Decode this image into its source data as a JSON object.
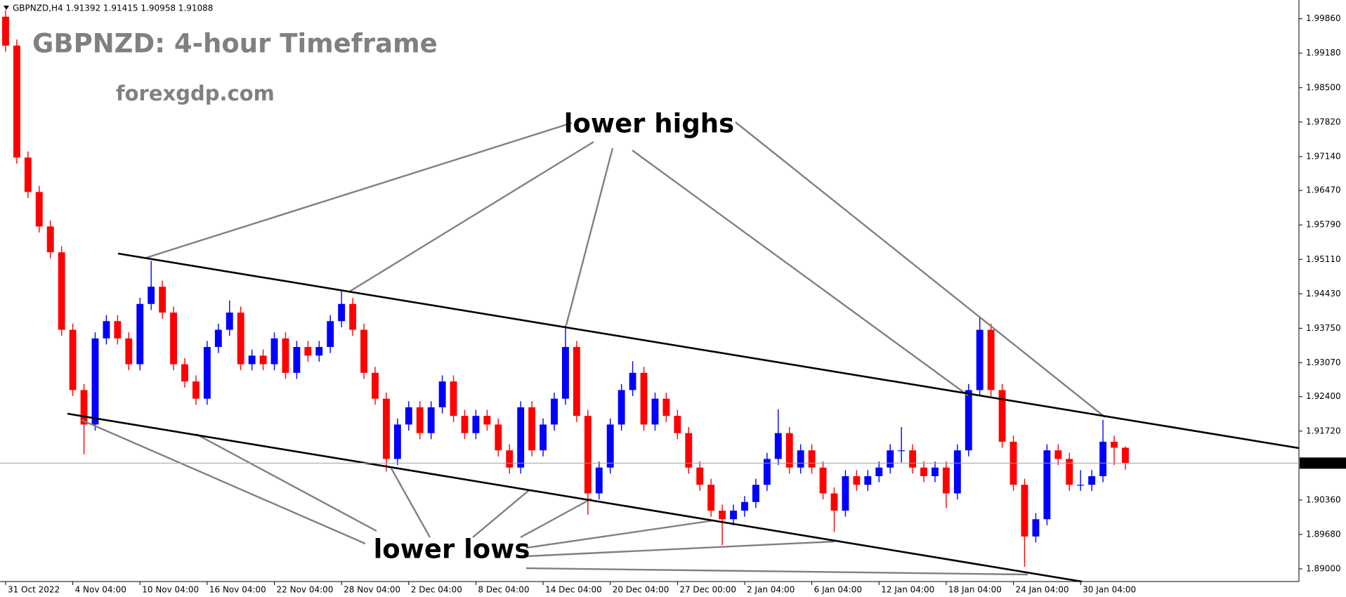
{
  "chart_data": {
    "type": "candlestick",
    "header": "GBPNZD,H4  1.91392 1.91415 1.90958 1.91088",
    "title": "GBPNZD: 4-hour Timeframe",
    "subtitle": "forexgdp.com",
    "annotations": {
      "highs": "lower highs",
      "lows": "lower lows"
    },
    "up_color": "#0000ff",
    "down_color": "#ff0000",
    "last_price": 1.91088,
    "xlim": [
      -0.5,
      115.5
    ],
    "xticks": [
      {
        "value": 0,
        "label": "31 Oct 2022"
      },
      {
        "value": 6,
        "label": "4 Nov 04:00"
      },
      {
        "value": 12,
        "label": "10 Nov 04:00"
      },
      {
        "value": 18,
        "label": "16 Nov 04:00"
      },
      {
        "value": 24,
        "label": "22 Nov 04:00"
      },
      {
        "value": 30,
        "label": "28 Nov 04:00"
      },
      {
        "value": 36,
        "label": "2 Dec 04:00"
      },
      {
        "value": 42,
        "label": "8 Dec 04:00"
      },
      {
        "value": 48,
        "label": "14 Dec 04:00"
      },
      {
        "value": 54,
        "label": "20 Dec 04:00"
      },
      {
        "value": 60,
        "label": "27 Dec 00:00"
      },
      {
        "value": 66,
        "label": "2 Jan 04:00"
      },
      {
        "value": 72,
        "label": "6 Jan 04:00"
      },
      {
        "value": 78,
        "label": "12 Jan 04:00"
      },
      {
        "value": 84,
        "label": "18 Jan 04:00"
      },
      {
        "value": 90,
        "label": "24 Jan 04:00"
      },
      {
        "value": 96,
        "label": "30 Jan 04:00"
      }
    ],
    "ylim": [
      1.8875,
      2.0023
    ],
    "yticks": [
      {
        "value": 1.9986,
        "label": "1.99860"
      },
      {
        "value": 1.9918,
        "label": "1.99180"
      },
      {
        "value": 1.985,
        "label": "1.98500"
      },
      {
        "value": 1.9782,
        "label": "1.97820"
      },
      {
        "value": 1.9714,
        "label": "1.97140"
      },
      {
        "value": 1.9647,
        "label": "1.96470"
      },
      {
        "value": 1.9579,
        "label": "1.95790"
      },
      {
        "value": 1.9511,
        "label": "1.95110"
      },
      {
        "value": 1.9443,
        "label": "1.94430"
      },
      {
        "value": 1.9375,
        "label": "1.93750"
      },
      {
        "value": 1.9307,
        "label": "1.93070"
      },
      {
        "value": 1.924,
        "label": "1.92400"
      },
      {
        "value": 1.9172,
        "label": "1.91720"
      },
      {
        "value": 1.9036,
        "label": "1.90360"
      },
      {
        "value": 1.8968,
        "label": "1.89680"
      },
      {
        "value": 1.89,
        "label": "1.89000"
      }
    ],
    "open": [
      1.999,
      1.9933,
      1.9712,
      1.9644,
      1.9576,
      1.9525,
      1.9372,
      1.9253,
      1.9185,
      1.9355,
      1.9389,
      1.9355,
      1.9304,
      1.9423,
      1.9457,
      1.9406,
      1.9304,
      1.927,
      1.9236,
      1.9338,
      1.9372,
      1.9406,
      1.9304,
      1.9321,
      1.9304,
      1.9355,
      1.9287,
      1.9338,
      1.9321,
      1.9338,
      1.9389,
      1.9423,
      1.9372,
      1.9287,
      1.9236,
      1.9117,
      1.9185,
      1.9219,
      1.9168,
      1.9219,
      1.927,
      1.9202,
      1.9168,
      1.9202,
      1.9185,
      1.9134,
      1.91,
      1.9219,
      1.9134,
      1.9185,
      1.9236,
      1.9338,
      1.9202,
      1.9049,
      1.91,
      1.9185,
      1.9253,
      1.9287,
      1.9185,
      1.9236,
      1.9202,
      1.9168,
      1.91,
      1.9066,
      1.9015,
      1.8998,
      1.9015,
      1.9032,
      1.9066,
      1.9117,
      1.9168,
      1.91,
      1.9134,
      1.91,
      1.9049,
      1.9015,
      1.9083,
      1.9066,
      1.9083,
      1.91,
      1.9134,
      1.9134,
      1.91,
      1.9083,
      1.91,
      1.9049,
      1.9134,
      1.9253,
      1.9372,
      1.9253,
      1.9151,
      1.9066,
      1.8964,
      1.8998,
      1.9134,
      1.9117,
      1.9066,
      1.9066,
      1.9083,
      1.9151,
      1.91392
    ],
    "high": [
      2.0003,
      1.9945,
      1.9724,
      1.9656,
      1.9588,
      1.9537,
      1.9384,
      1.9265,
      1.9367,
      1.9401,
      1.9401,
      1.9367,
      1.9435,
      1.9508,
      1.9469,
      1.9418,
      1.9316,
      1.9282,
      1.935,
      1.9384,
      1.943,
      1.9418,
      1.9333,
      1.9333,
      1.9367,
      1.9367,
      1.935,
      1.935,
      1.935,
      1.9401,
      1.9449,
      1.9435,
      1.9384,
      1.9299,
      1.9248,
      1.9197,
      1.9231,
      1.9231,
      1.9231,
      1.9282,
      1.9282,
      1.9214,
      1.9214,
      1.9214,
      1.9197,
      1.9146,
      1.9231,
      1.9231,
      1.9197,
      1.9248,
      1.9381,
      1.935,
      1.9214,
      1.9112,
      1.9197,
      1.9265,
      1.931,
      1.9299,
      1.9248,
      1.9248,
      1.9214,
      1.918,
      1.9112,
      1.9078,
      1.9027,
      1.9027,
      1.9044,
      1.9078,
      1.9129,
      1.9215,
      1.918,
      1.9146,
      1.9146,
      1.9112,
      1.9061,
      1.9095,
      1.9095,
      1.9095,
      1.9112,
      1.9146,
      1.918,
      1.9146,
      1.9112,
      1.9112,
      1.9112,
      1.9146,
      1.9265,
      1.9398,
      1.9384,
      1.9265,
      1.9163,
      1.9078,
      1.901,
      1.9146,
      1.9146,
      1.9129,
      1.9095,
      1.9095,
      1.9194,
      1.9163,
      1.91415
    ],
    "low": [
      1.9921,
      1.97,
      1.9632,
      1.9564,
      1.9513,
      1.936,
      1.9241,
      1.9126,
      1.9173,
      1.9343,
      1.9343,
      1.9292,
      1.9292,
      1.9411,
      1.9394,
      1.9292,
      1.9258,
      1.9224,
      1.9224,
      1.9326,
      1.936,
      1.9292,
      1.9292,
      1.9292,
      1.9292,
      1.9275,
      1.9275,
      1.9309,
      1.9309,
      1.9326,
      1.9377,
      1.936,
      1.9275,
      1.9224,
      1.9092,
      1.9105,
      1.9173,
      1.9156,
      1.9156,
      1.9207,
      1.919,
      1.9156,
      1.9156,
      1.9173,
      1.9122,
      1.9088,
      1.9088,
      1.9122,
      1.9122,
      1.9173,
      1.9224,
      1.919,
      1.9007,
      1.9037,
      1.9088,
      1.9173,
      1.9241,
      1.9173,
      1.9173,
      1.919,
      1.9156,
      1.9088,
      1.9054,
      1.9003,
      1.8947,
      1.8986,
      1.9003,
      1.902,
      1.9054,
      1.9105,
      1.9088,
      1.9088,
      1.9088,
      1.9037,
      1.8973,
      1.9003,
      1.9054,
      1.9054,
      1.9071,
      1.9088,
      1.911,
      1.9088,
      1.9071,
      1.9071,
      1.902,
      1.9037,
      1.9122,
      1.9241,
      1.9241,
      1.9139,
      1.9054,
      1.8904,
      1.8952,
      1.8986,
      1.9105,
      1.9054,
      1.9054,
      1.9054,
      1.9071,
      1.9105,
      1.90958
    ],
    "close": [
      1.9933,
      1.9712,
      1.9644,
      1.9576,
      1.9525,
      1.9372,
      1.9253,
      1.9185,
      1.9355,
      1.9389,
      1.9355,
      1.9304,
      1.9423,
      1.9457,
      1.9406,
      1.9304,
      1.927,
      1.9236,
      1.9338,
      1.9372,
      1.9406,
      1.9304,
      1.9321,
      1.9304,
      1.9355,
      1.9287,
      1.9338,
      1.9321,
      1.9338,
      1.9389,
      1.9423,
      1.9372,
      1.9287,
      1.9236,
      1.9117,
      1.9185,
      1.9219,
      1.9168,
      1.9219,
      1.927,
      1.9202,
      1.9168,
      1.9202,
      1.9185,
      1.9134,
      1.91,
      1.9219,
      1.9134,
      1.9185,
      1.9236,
      1.9338,
      1.9202,
      1.9049,
      1.91,
      1.9185,
      1.9253,
      1.9287,
      1.9185,
      1.9236,
      1.9202,
      1.9168,
      1.91,
      1.9066,
      1.9015,
      1.8998,
      1.9015,
      1.9032,
      1.9066,
      1.9117,
      1.9168,
      1.91,
      1.9134,
      1.91,
      1.9049,
      1.9015,
      1.9083,
      1.9066,
      1.9083,
      1.91,
      1.9134,
      1.9134,
      1.91,
      1.9083,
      1.91,
      1.9049,
      1.9134,
      1.9253,
      1.9372,
      1.9253,
      1.9151,
      1.9066,
      1.8964,
      1.8998,
      1.9134,
      1.9117,
      1.9066,
      1.9066,
      1.9083,
      1.9151,
      1.91392,
      1.91088
    ]
  }
}
